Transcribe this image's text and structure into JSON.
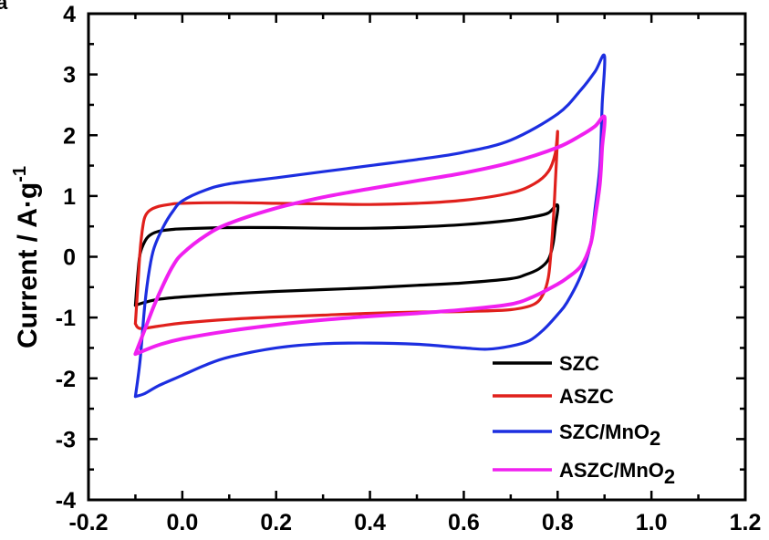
{
  "chart_data": {
    "type": "line",
    "title": "",
    "xlabel": "",
    "ylabel": {
      "main": "Current / A·g",
      "sup": "-1"
    },
    "xlim": [
      -0.2,
      1.2
    ],
    "ylim": [
      -4,
      4
    ],
    "xticks": [
      "-0.2",
      "0.0",
      "0.2",
      "0.4",
      "0.6",
      "0.8",
      "1.0",
      "1.2"
    ],
    "yticks": [
      "-4",
      "-3",
      "-2",
      "-1",
      "0",
      "1",
      "2",
      "3",
      "4"
    ],
    "grid": false,
    "legend_position": "bottom-right",
    "series": [
      {
        "name": "SZC",
        "legend": {
          "main": "SZC",
          "sub": ""
        },
        "color": "#000000",
        "points": [
          [
            -0.1,
            -0.8
          ],
          [
            -0.095,
            -0.3
          ],
          [
            -0.09,
            0.05
          ],
          [
            -0.08,
            0.25
          ],
          [
            -0.07,
            0.35
          ],
          [
            -0.05,
            0.42
          ],
          [
            -0.02,
            0.45
          ],
          [
            0.0,
            0.46
          ],
          [
            0.1,
            0.48
          ],
          [
            0.2,
            0.48
          ],
          [
            0.3,
            0.47
          ],
          [
            0.4,
            0.47
          ],
          [
            0.5,
            0.49
          ],
          [
            0.6,
            0.53
          ],
          [
            0.7,
            0.6
          ],
          [
            0.75,
            0.66
          ],
          [
            0.78,
            0.72
          ],
          [
            0.8,
            0.85
          ],
          [
            0.795,
            0.5
          ],
          [
            0.79,
            0.2
          ],
          [
            0.78,
            -0.05
          ],
          [
            0.76,
            -0.2
          ],
          [
            0.73,
            -0.3
          ],
          [
            0.7,
            -0.36
          ],
          [
            0.6,
            -0.43
          ],
          [
            0.5,
            -0.47
          ],
          [
            0.4,
            -0.51
          ],
          [
            0.3,
            -0.54
          ],
          [
            0.2,
            -0.57
          ],
          [
            0.1,
            -0.61
          ],
          [
            0.0,
            -0.66
          ],
          [
            -0.05,
            -0.7
          ],
          [
            -0.08,
            -0.75
          ],
          [
            -0.1,
            -0.8
          ]
        ]
      },
      {
        "name": "ASZC",
        "legend": {
          "main": "ASZC",
          "sub": ""
        },
        "color": "#e0201c",
        "points": [
          [
            -0.1,
            -1.1
          ],
          [
            -0.095,
            -0.5
          ],
          [
            -0.09,
            0.1
          ],
          [
            -0.085,
            0.45
          ],
          [
            -0.08,
            0.65
          ],
          [
            -0.07,
            0.76
          ],
          [
            -0.05,
            0.83
          ],
          [
            -0.02,
            0.87
          ],
          [
            0.0,
            0.88
          ],
          [
            0.1,
            0.89
          ],
          [
            0.2,
            0.88
          ],
          [
            0.3,
            0.87
          ],
          [
            0.4,
            0.86
          ],
          [
            0.5,
            0.88
          ],
          [
            0.6,
            0.93
          ],
          [
            0.7,
            1.05
          ],
          [
            0.75,
            1.2
          ],
          [
            0.78,
            1.4
          ],
          [
            0.795,
            1.7
          ],
          [
            0.8,
            2.05
          ],
          [
            0.795,
            1.2
          ],
          [
            0.79,
            0.5
          ],
          [
            0.785,
            0.0
          ],
          [
            0.78,
            -0.35
          ],
          [
            0.77,
            -0.6
          ],
          [
            0.75,
            -0.78
          ],
          [
            0.7,
            -0.87
          ],
          [
            0.6,
            -0.9
          ],
          [
            0.5,
            -0.91
          ],
          [
            0.4,
            -0.93
          ],
          [
            0.3,
            -0.96
          ],
          [
            0.2,
            -0.99
          ],
          [
            0.1,
            -1.03
          ],
          [
            0.0,
            -1.09
          ],
          [
            -0.05,
            -1.14
          ],
          [
            -0.09,
            -1.18
          ],
          [
            -0.1,
            -1.1
          ]
        ]
      },
      {
        "name": "SZC/MnO2",
        "legend": {
          "main": "SZC/MnO",
          "sub": "2"
        },
        "color": "#1c2ee0",
        "points": [
          [
            -0.1,
            -2.3
          ],
          [
            -0.09,
            -1.7
          ],
          [
            -0.08,
            -0.8
          ],
          [
            -0.07,
            -0.2
          ],
          [
            -0.06,
            0.15
          ],
          [
            -0.04,
            0.5
          ],
          [
            -0.02,
            0.75
          ],
          [
            0.0,
            0.92
          ],
          [
            0.05,
            1.1
          ],
          [
            0.1,
            1.2
          ],
          [
            0.2,
            1.3
          ],
          [
            0.3,
            1.4
          ],
          [
            0.4,
            1.5
          ],
          [
            0.5,
            1.6
          ],
          [
            0.6,
            1.72
          ],
          [
            0.7,
            1.92
          ],
          [
            0.8,
            2.35
          ],
          [
            0.85,
            2.75
          ],
          [
            0.88,
            3.05
          ],
          [
            0.9,
            3.3
          ],
          [
            0.895,
            2.5
          ],
          [
            0.89,
            1.5
          ],
          [
            0.88,
            0.8
          ],
          [
            0.87,
            0.2
          ],
          [
            0.85,
            -0.3
          ],
          [
            0.82,
            -0.75
          ],
          [
            0.8,
            -0.95
          ],
          [
            0.77,
            -1.2
          ],
          [
            0.74,
            -1.38
          ],
          [
            0.7,
            -1.47
          ],
          [
            0.65,
            -1.52
          ],
          [
            0.6,
            -1.5
          ],
          [
            0.5,
            -1.44
          ],
          [
            0.4,
            -1.42
          ],
          [
            0.3,
            -1.43
          ],
          [
            0.2,
            -1.5
          ],
          [
            0.1,
            -1.65
          ],
          [
            0.05,
            -1.78
          ],
          [
            0.0,
            -1.95
          ],
          [
            -0.05,
            -2.12
          ],
          [
            -0.08,
            -2.25
          ],
          [
            -0.1,
            -2.3
          ]
        ]
      },
      {
        "name": "ASZC/MnO2",
        "legend": {
          "main": "ASZC/MnO",
          "sub": "2"
        },
        "color": "#f020f0",
        "points": [
          [
            -0.1,
            -1.6
          ],
          [
            -0.08,
            -1.2
          ],
          [
            -0.06,
            -0.8
          ],
          [
            -0.04,
            -0.45
          ],
          [
            -0.02,
            -0.15
          ],
          [
            0.0,
            0.05
          ],
          [
            0.05,
            0.35
          ],
          [
            0.1,
            0.55
          ],
          [
            0.2,
            0.8
          ],
          [
            0.3,
            0.98
          ],
          [
            0.4,
            1.12
          ],
          [
            0.5,
            1.25
          ],
          [
            0.6,
            1.38
          ],
          [
            0.7,
            1.55
          ],
          [
            0.8,
            1.8
          ],
          [
            0.85,
            2.0
          ],
          [
            0.88,
            2.15
          ],
          [
            0.9,
            2.3
          ],
          [
            0.895,
            1.8
          ],
          [
            0.89,
            1.2
          ],
          [
            0.88,
            0.65
          ],
          [
            0.87,
            0.2
          ],
          [
            0.85,
            -0.15
          ],
          [
            0.82,
            -0.35
          ],
          [
            0.8,
            -0.45
          ],
          [
            0.75,
            -0.65
          ],
          [
            0.7,
            -0.78
          ],
          [
            0.6,
            -0.87
          ],
          [
            0.5,
            -0.93
          ],
          [
            0.4,
            -0.98
          ],
          [
            0.3,
            -1.04
          ],
          [
            0.2,
            -1.12
          ],
          [
            0.1,
            -1.22
          ],
          [
            0.0,
            -1.35
          ],
          [
            -0.05,
            -1.45
          ],
          [
            -0.09,
            -1.57
          ],
          [
            -0.1,
            -1.6
          ]
        ]
      }
    ]
  }
}
